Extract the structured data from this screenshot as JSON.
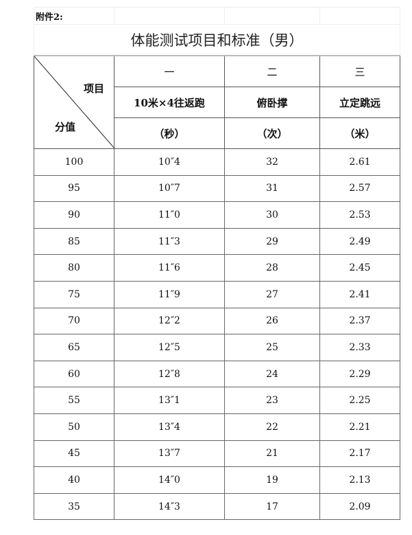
{
  "note": "附件2:",
  "title": "体能测试项目和标准（男）",
  "header": {
    "corner_top": "项目",
    "corner_bottom": "分值",
    "numbers": [
      "一",
      "二",
      "三"
    ],
    "items": [
      "10米×4往返跑",
      "俯卧撑",
      "立定跳远"
    ],
    "units": [
      "（秒）",
      "（次）",
      "（米）"
    ]
  },
  "rows": [
    [
      "100",
      "10″4",
      "32",
      "2.61"
    ],
    [
      "95",
      "10″7",
      "31",
      "2.57"
    ],
    [
      "90",
      "11″0",
      "30",
      "2.53"
    ],
    [
      "85",
      "11″3",
      "29",
      "2.49"
    ],
    [
      "80",
      "11″6",
      "28",
      "2.45"
    ],
    [
      "75",
      "11″9",
      "27",
      "2.41"
    ],
    [
      "70",
      "12″2",
      "26",
      "2.37"
    ],
    [
      "65",
      "12″5",
      "25",
      "2.33"
    ],
    [
      "60",
      "12″8",
      "24",
      "2.29"
    ],
    [
      "55",
      "13″1",
      "23",
      "2.25"
    ],
    [
      "50",
      "13″4",
      "22",
      "2.21"
    ],
    [
      "45",
      "13″7",
      "21",
      "2.17"
    ],
    [
      "40",
      "14″0",
      "19",
      "2.13"
    ],
    [
      "35",
      "14″3",
      "17",
      "2.09"
    ]
  ]
}
